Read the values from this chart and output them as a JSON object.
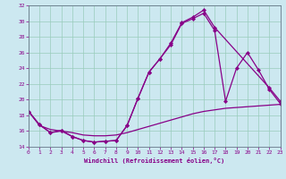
{
  "xlabel": "Windchill (Refroidissement éolien,°C)",
  "bg_color": "#cce8f0",
  "line_color": "#880088",
  "grid_color": "#99ccbb",
  "xlim": [
    0,
    23
  ],
  "ylim": [
    14,
    32
  ],
  "xticks": [
    0,
    1,
    2,
    3,
    4,
    5,
    6,
    7,
    8,
    9,
    10,
    11,
    12,
    13,
    14,
    15,
    16,
    17,
    18,
    19,
    20,
    21,
    22,
    23
  ],
  "yticks": [
    14,
    16,
    18,
    20,
    22,
    24,
    26,
    28,
    30,
    32
  ],
  "curve1_x": [
    0,
    1,
    2,
    3,
    4,
    5,
    6,
    7,
    8,
    9,
    10,
    11,
    12,
    13,
    14,
    15,
    16,
    17,
    22,
    23
  ],
  "curve1_y": [
    18.5,
    16.8,
    15.8,
    16.1,
    15.3,
    14.8,
    14.6,
    14.7,
    14.8,
    16.7,
    20.2,
    23.5,
    25.2,
    27.2,
    29.8,
    30.5,
    31.4,
    29.2,
    21.5,
    19.8
  ],
  "curve2_x": [
    0,
    1,
    2,
    3,
    4,
    5,
    6,
    7,
    8,
    9,
    10,
    11,
    12,
    13,
    14,
    15,
    16,
    17,
    18,
    19,
    20,
    21,
    22,
    23
  ],
  "curve2_y": [
    18.5,
    16.8,
    15.8,
    16.0,
    15.3,
    14.8,
    14.6,
    14.7,
    14.8,
    16.7,
    20.2,
    23.5,
    25.2,
    27.0,
    29.7,
    30.3,
    31.0,
    28.8,
    19.8,
    24.0,
    26.0,
    23.8,
    21.3,
    19.5
  ],
  "curve3_x": [
    0,
    1,
    2,
    3,
    4,
    5,
    6,
    7,
    8,
    9,
    10,
    11,
    12,
    13,
    14,
    15,
    16,
    17,
    18,
    19,
    20,
    21,
    22,
    23
  ],
  "curve3_y": [
    18.5,
    16.7,
    16.2,
    16.0,
    15.8,
    15.5,
    15.4,
    15.4,
    15.5,
    15.8,
    16.2,
    16.6,
    17.0,
    17.4,
    17.8,
    18.2,
    18.5,
    18.7,
    18.9,
    19.0,
    19.1,
    19.2,
    19.3,
    19.4
  ]
}
